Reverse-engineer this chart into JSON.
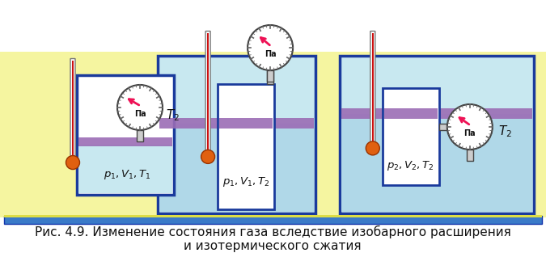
{
  "bg_yellow": "#F5F5A0",
  "bg_white": "#FFFFFF",
  "water_light": "#C8E8F0",
  "water_mid": "#B0D8E8",
  "purple": "#9B6DB5",
  "blue_border": "#1A3A9C",
  "blue_shelf": "#3A7AC8",
  "therm_red": "#CC1111",
  "therm_orange": "#E05800",
  "bulb_orange": "#E06010",
  "gauge_white": "#FFFFFF",
  "gauge_gray": "#444444",
  "needle_pink": "#EE1155",
  "inner_white": "#FFFFFF",
  "caption1": "Рис. 4.9. Изменение состояния газа вследствие изобарного расширения",
  "caption2": "и изотермического сжатия",
  "label1": "$p_1, V_1, T_1$",
  "label2": "$p_1, V_1, T_2$",
  "label3": "$p_2, V_2, T_2$",
  "T2a": "$T_2$",
  "T2b": "$T_2$",
  "Pa": "Па"
}
